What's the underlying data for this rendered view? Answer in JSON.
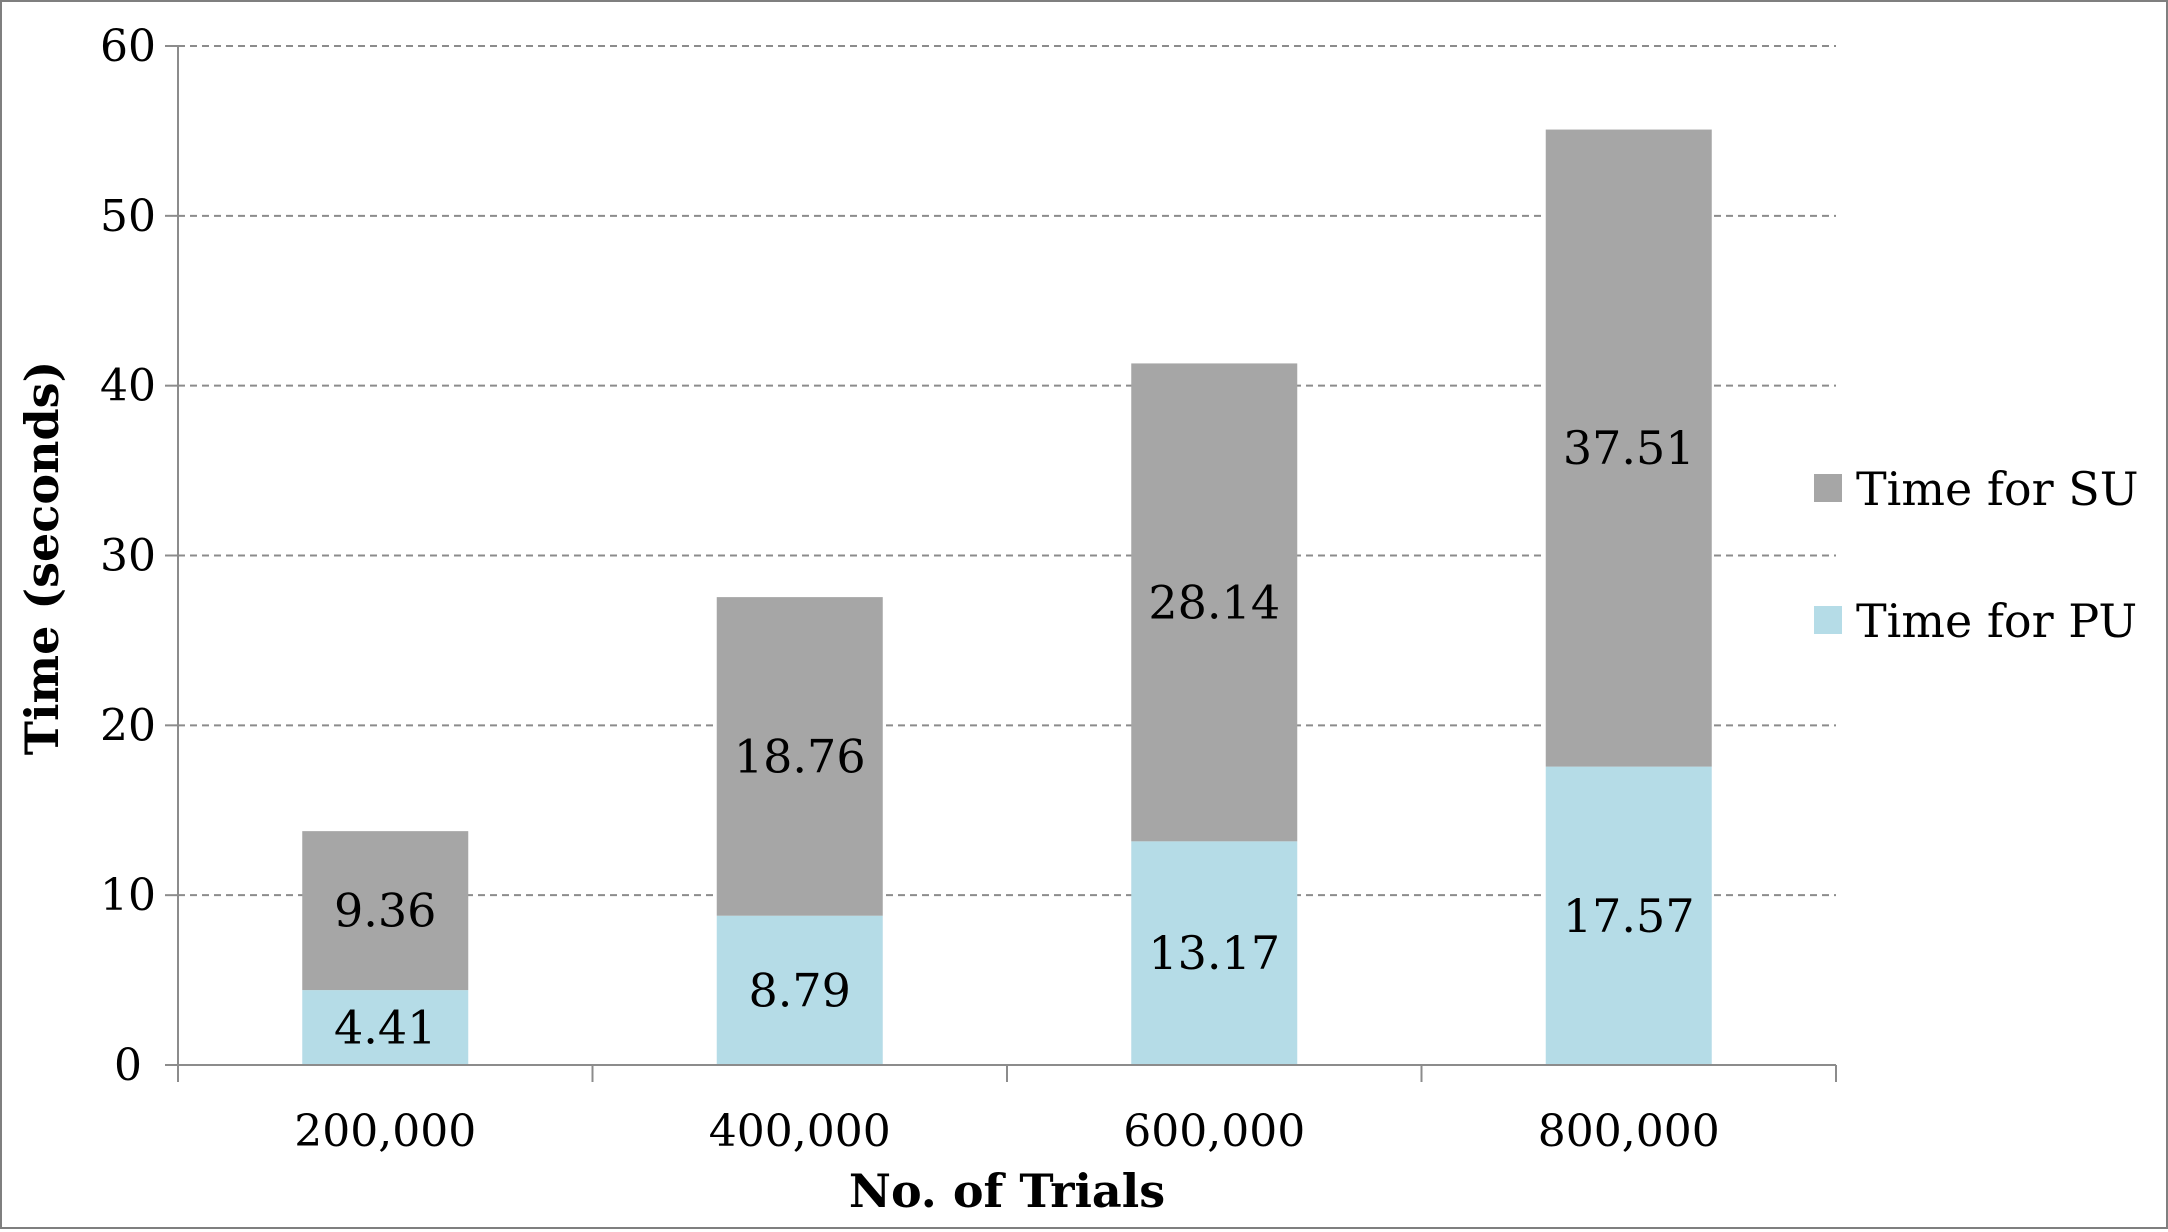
{
  "chart_data": {
    "type": "bar",
    "stacked": true,
    "categories": [
      "200,000",
      "400,000",
      "600,000",
      "800,000"
    ],
    "series": [
      {
        "name": "Time for PU",
        "values": [
          4.41,
          8.79,
          13.17,
          17.57
        ],
        "labels": [
          "4.41",
          "8.79",
          "13.17",
          "17.57"
        ],
        "color": "#b5dce7"
      },
      {
        "name": "Time for SU",
        "values": [
          9.36,
          18.76,
          28.14,
          37.51
        ],
        "labels": [
          "9.36",
          "18.76",
          "28.14",
          "37.51"
        ],
        "color": "#a6a6a6"
      }
    ],
    "xlabel": "No. of Trials",
    "ylabel": "Time (seconds)",
    "ylim": [
      0,
      60
    ],
    "yticks": [
      0,
      10,
      20,
      30,
      40,
      50,
      60
    ],
    "ytick_labels": [
      "0",
      "10",
      "20",
      "30",
      "40",
      "50",
      "60"
    ],
    "grid": true,
    "legend_position": "right",
    "legend": [
      {
        "label": "Time for SU",
        "color": "#a6a6a6"
      },
      {
        "label": "Time for PU",
        "color": "#b5dce7"
      }
    ]
  }
}
